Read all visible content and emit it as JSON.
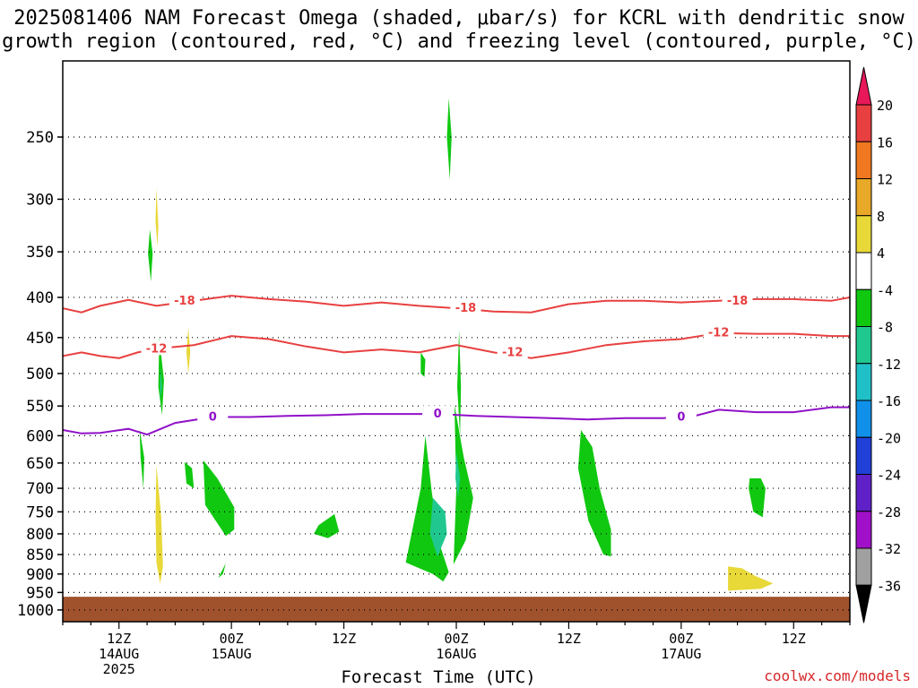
{
  "title": "2025081406 NAM Forecast Omega (shaded, μbar/s) for KCRL with dendritic snow\ngrowth region (contoured, red, °C) and freezing level (contoured, purple, °C)",
  "credit": "coolwx.com/models",
  "chart_data": {
    "type": "heatmap",
    "xlabel": "Forecast Time (UTC)",
    "ylabel": "",
    "x_ticks": [
      {
        "h": 0,
        "l1": "12Z",
        "l2": "14AUG",
        "l3": "2025"
      },
      {
        "h": 12,
        "l1": "00Z",
        "l2": "15AUG",
        "l3": ""
      },
      {
        "h": 24,
        "l1": "12Z",
        "l2": "",
        "l3": ""
      },
      {
        "h": 36,
        "l1": "00Z",
        "l2": "16AUG",
        "l3": ""
      },
      {
        "h": 48,
        "l1": "12Z",
        "l2": "",
        "l3": ""
      },
      {
        "h": 60,
        "l1": "00Z",
        "l2": "17AUG",
        "l3": ""
      },
      {
        "h": 72,
        "l1": "12Z",
        "l2": "",
        "l3": ""
      }
    ],
    "xlim_hours": [
      -6,
      78
    ],
    "y_ticks": [
      250,
      300,
      350,
      400,
      450,
      500,
      550,
      600,
      650,
      700,
      750,
      800,
      850,
      900,
      950,
      1000
    ],
    "ylim_hpa": [
      200,
      1035
    ],
    "y_scale": "log-pressure",
    "grid": true,
    "colorbar": {
      "labels": [
        20,
        16,
        12,
        8,
        4,
        -4,
        -8,
        -12,
        -16,
        -20,
        -24,
        -28,
        -32,
        -36
      ],
      "colors": [
        "#e8185a",
        "#e84040",
        "#f07820",
        "#e8a828",
        "#e8d838",
        "#ffffff",
        "#10c810",
        "#20c890",
        "#20c0c8",
        "#1090e8",
        "#2040d8",
        "#6020c8",
        "#a010c8",
        "#a0a0a0",
        "#000000"
      ]
    },
    "contours": [
      {
        "name": "-18",
        "color": "#e84040",
        "label_hours": [
          7,
          37,
          66
        ],
        "points": [
          [
            -6,
            413
          ],
          [
            -4,
            418
          ],
          [
            -2,
            410
          ],
          [
            1,
            403
          ],
          [
            4,
            410
          ],
          [
            8,
            404
          ],
          [
            12,
            398
          ],
          [
            16,
            402
          ],
          [
            20,
            405
          ],
          [
            24,
            410
          ],
          [
            28,
            406
          ],
          [
            32,
            410
          ],
          [
            36,
            413
          ],
          [
            40,
            417
          ],
          [
            44,
            418
          ],
          [
            48,
            408
          ],
          [
            52,
            404
          ],
          [
            56,
            404
          ],
          [
            60,
            406
          ],
          [
            64,
            404
          ],
          [
            68,
            402
          ],
          [
            72,
            402
          ],
          [
            76,
            404
          ],
          [
            78,
            400
          ]
        ]
      },
      {
        "name": "-12",
        "color": "#e84040",
        "label_hours": [
          4,
          42,
          64
        ],
        "points": [
          [
            -6,
            475
          ],
          [
            -4,
            470
          ],
          [
            -2,
            475
          ],
          [
            0,
            478
          ],
          [
            2,
            470
          ],
          [
            4,
            465
          ],
          [
            8,
            460
          ],
          [
            12,
            448
          ],
          [
            16,
            452
          ],
          [
            20,
            462
          ],
          [
            24,
            470
          ],
          [
            28,
            466
          ],
          [
            32,
            470
          ],
          [
            36,
            460
          ],
          [
            40,
            470
          ],
          [
            44,
            478
          ],
          [
            48,
            470
          ],
          [
            52,
            460
          ],
          [
            56,
            455
          ],
          [
            60,
            452
          ],
          [
            64,
            444
          ],
          [
            68,
            445
          ],
          [
            72,
            445
          ],
          [
            76,
            448
          ],
          [
            78,
            448
          ]
        ]
      },
      {
        "name": "0",
        "color": "#9010c8",
        "label_hours": [
          10,
          34,
          60
        ],
        "points": [
          [
            -6,
            590
          ],
          [
            -4,
            596
          ],
          [
            -2,
            595
          ],
          [
            1,
            588
          ],
          [
            3,
            598
          ],
          [
            6,
            578
          ],
          [
            10,
            568
          ],
          [
            14,
            568
          ],
          [
            18,
            566
          ],
          [
            22,
            565
          ],
          [
            26,
            563
          ],
          [
            30,
            563
          ],
          [
            34,
            563
          ],
          [
            38,
            566
          ],
          [
            42,
            568
          ],
          [
            46,
            570
          ],
          [
            50,
            572
          ],
          [
            54,
            570
          ],
          [
            58,
            570
          ],
          [
            61,
            568
          ],
          [
            64,
            556
          ],
          [
            68,
            560
          ],
          [
            72,
            560
          ],
          [
            76,
            552
          ],
          [
            78,
            552
          ]
        ]
      }
    ],
    "omega_regions": [
      {
        "value": -6,
        "points": [
          [
            35.2,
            223
          ],
          [
            35.5,
            250
          ],
          [
            35.3,
            283
          ],
          [
            35.0,
            250
          ]
        ]
      },
      {
        "value": -6,
        "points": [
          [
            3.3,
            328
          ],
          [
            3.6,
            352
          ],
          [
            3.4,
            382
          ],
          [
            3.1,
            352
          ]
        ]
      },
      {
        "value": -6,
        "points": [
          [
            4.3,
            450
          ],
          [
            4.8,
            510
          ],
          [
            4.6,
            565
          ],
          [
            4.2,
            520
          ]
        ]
      },
      {
        "value": -6,
        "points": [
          [
            2.2,
            588
          ],
          [
            2.7,
            640
          ],
          [
            2.6,
            700
          ],
          [
            2.3,
            640
          ]
        ]
      },
      {
        "value": -6,
        "points": [
          [
            7.0,
            648
          ],
          [
            7.8,
            660
          ],
          [
            8.0,
            700
          ],
          [
            7.2,
            690
          ]
        ]
      },
      {
        "value": -6,
        "points": [
          [
            9.0,
            645
          ],
          [
            10.5,
            680
          ],
          [
            12.3,
            740
          ],
          [
            12.3,
            790
          ],
          [
            11.4,
            805
          ],
          [
            9.2,
            735
          ]
        ]
      },
      {
        "value": -6,
        "points": [
          [
            10.6,
            910
          ],
          [
            11.4,
            872
          ],
          [
            11.1,
            900
          ]
        ]
      },
      {
        "value": -6,
        "points": [
          [
            21.3,
            780
          ],
          [
            23.0,
            755
          ],
          [
            23.5,
            795
          ],
          [
            22.3,
            810
          ],
          [
            20.8,
            800
          ]
        ]
      },
      {
        "value": -6,
        "points": [
          [
            32.7,
            600
          ],
          [
            33.4,
            710
          ],
          [
            34.3,
            830
          ],
          [
            35.2,
            895
          ],
          [
            34.6,
            920
          ],
          [
            33.5,
            900
          ],
          [
            30.6,
            870
          ],
          [
            32.2,
            700
          ]
        ]
      },
      {
        "value": -6,
        "points": [
          [
            35.8,
            548
          ],
          [
            36.8,
            640
          ],
          [
            37.8,
            720
          ],
          [
            37.0,
            815
          ],
          [
            35.7,
            875
          ],
          [
            36.0,
            700
          ]
        ]
      },
      {
        "value": -6,
        "points": [
          [
            36.3,
            440
          ],
          [
            36.5,
            520
          ],
          [
            36.4,
            600
          ],
          [
            36.1,
            520
          ]
        ]
      },
      {
        "value": -6,
        "points": [
          [
            32.2,
            470
          ],
          [
            32.7,
            480
          ],
          [
            32.6,
            505
          ],
          [
            32.2,
            500
          ]
        ]
      },
      {
        "value": -6,
        "points": [
          [
            49.3,
            590
          ],
          [
            50.5,
            620
          ],
          [
            51.3,
            700
          ],
          [
            52.5,
            790
          ],
          [
            52.5,
            855
          ],
          [
            51.7,
            850
          ],
          [
            50.1,
            770
          ],
          [
            49.0,
            660
          ]
        ]
      },
      {
        "value": -6,
        "points": [
          [
            67.3,
            680
          ],
          [
            68.5,
            680
          ],
          [
            69.0,
            700
          ],
          [
            68.7,
            762
          ],
          [
            67.7,
            750
          ],
          [
            67.2,
            700
          ]
        ]
      },
      {
        "value": -10,
        "points": [
          [
            33.5,
            720
          ],
          [
            34.8,
            750
          ],
          [
            35.0,
            800
          ],
          [
            34.0,
            855
          ],
          [
            33.2,
            800
          ]
        ]
      },
      {
        "value": -10,
        "points": [
          [
            36.0,
            630
          ],
          [
            36.4,
            680
          ],
          [
            36.2,
            720
          ],
          [
            35.9,
            680
          ]
        ]
      },
      {
        "value": -10,
        "points": [
          [
            4.4,
            490
          ],
          [
            4.6,
            520
          ],
          [
            4.4,
            540
          ]
        ]
      },
      {
        "value": 6,
        "points": [
          [
            4.0,
            290
          ],
          [
            4.2,
            325
          ],
          [
            4.1,
            345
          ],
          [
            3.9,
            320
          ]
        ]
      },
      {
        "value": 6,
        "points": [
          [
            7.4,
            437
          ],
          [
            7.6,
            470
          ],
          [
            7.4,
            500
          ],
          [
            7.2,
            470
          ]
        ]
      },
      {
        "value": 6,
        "points": [
          [
            4.0,
            655
          ],
          [
            4.5,
            760
          ],
          [
            4.7,
            880
          ],
          [
            4.4,
            925
          ],
          [
            4.0,
            870
          ],
          [
            3.9,
            760
          ]
        ]
      },
      {
        "value": 6,
        "points": [
          [
            65.0,
            880
          ],
          [
            66.5,
            885
          ],
          [
            67.9,
            905
          ],
          [
            69.8,
            925
          ],
          [
            68.5,
            940
          ],
          [
            65.0,
            945
          ]
        ]
      }
    ],
    "ground": {
      "top_hpa": 962,
      "color": "#a0522d"
    }
  }
}
